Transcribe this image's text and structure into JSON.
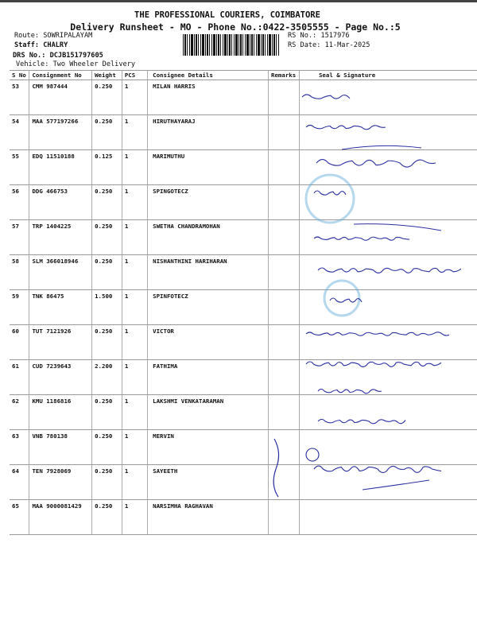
{
  "header": {
    "title": "THE PROFESSIONAL COURIERS, COIMBATORE",
    "subtitle": "Delivery Runsheet - MO - Phone No.:0422-3505555 - Page No.:5",
    "route": "Route: SOWRIPALAYAM",
    "staff": "Staff: CHALRY",
    "drs_no": "DRS No.: DCJB151797605",
    "vehicle": "Vehicle: Two Wheeler Delivery",
    "rs_no": "RS No.: 1517976",
    "rs_date": "RS Date: 11-Mar-2025"
  },
  "table": {
    "columns": [
      "S No",
      "Consignment No",
      "Weight",
      "PCS",
      "Consignee Details",
      "Remarks",
      "Seal & Signature"
    ],
    "rows": [
      {
        "sno": "53",
        "consignment": "CMM 987444",
        "weight": "0.250",
        "pcs": "1",
        "consignee": "MILAN HARRIS"
      },
      {
        "sno": "54",
        "consignment": "MAA 577197266",
        "weight": "0.250",
        "pcs": "1",
        "consignee": "HIRUTHAYARAJ"
      },
      {
        "sno": "55",
        "consignment": "EDQ 11510188",
        "weight": "0.125",
        "pcs": "1",
        "consignee": "MARIMUTHU"
      },
      {
        "sno": "56",
        "consignment": "DDG 466753",
        "weight": "0.250",
        "pcs": "1",
        "consignee": "SPINGOTECZ"
      },
      {
        "sno": "57",
        "consignment": "TRP 1404225",
        "weight": "0.250",
        "pcs": "1",
        "consignee": "SWETHA CHANDRAMOHAN"
      },
      {
        "sno": "58",
        "consignment": "SLM 366018946",
        "weight": "0.250",
        "pcs": "1",
        "consignee": "NISHANTHINI HARIHARAN"
      },
      {
        "sno": "59",
        "consignment": "TNK 86475",
        "weight": "1.500",
        "pcs": "1",
        "consignee": "SPINFOTECZ"
      },
      {
        "sno": "60",
        "consignment": "TUT 7121926",
        "weight": "0.250",
        "pcs": "1",
        "consignee": "VICTOR"
      },
      {
        "sno": "61",
        "consignment": "CUD 7239643",
        "weight": "2.200",
        "pcs": "1",
        "consignee": "FATHIMA"
      },
      {
        "sno": "62",
        "consignment": "KMU 1186816",
        "weight": "0.250",
        "pcs": "1",
        "consignee": "LAKSHMI VENKATARAMAN"
      },
      {
        "sno": "63",
        "consignment": "VNB 780138",
        "weight": "0.250",
        "pcs": "1",
        "consignee": "MERVIN"
      },
      {
        "sno": "64",
        "consignment": "TEN 7928069",
        "weight": "0.250",
        "pcs": "1",
        "consignee": "SAYEETH"
      },
      {
        "sno": "65",
        "consignment": "MAA 9000081429",
        "weight": "0.250",
        "pcs": "1",
        "consignee": "NARSIMHA RAGHAVAN"
      }
    ]
  },
  "colors": {
    "ink": "#2a2fa0",
    "stamp": "#5aa8d8"
  }
}
